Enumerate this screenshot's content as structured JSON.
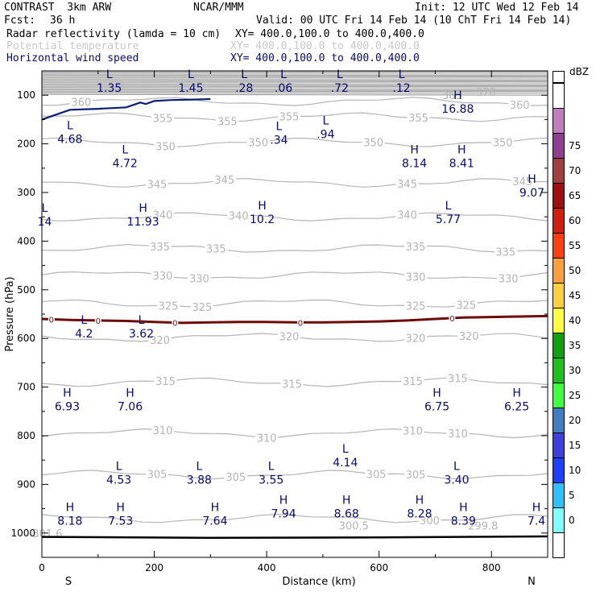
{
  "header": {
    "model": "CONTRAST  3km ARW",
    "org": "NCAR/MMM",
    "init": "Init: 12 UTC Wed 12 Feb 14",
    "fcst_label": "Fcst:",
    "fcst_value": "36 h",
    "valid": "Valid: 00 UTC Fri 14 Feb 14 (10 ChT Fri 14 Feb 14)",
    "fields": [
      {
        "name": "Radar reflectivity (lamda = 10 cm)",
        "xy": "XY= 400.0,100.0 to 400.0,400.0",
        "color": "#000000"
      },
      {
        "name": "Potential temperature",
        "xy": "XY= 400.0,100.0 to 400.0,400.0",
        "color": "#c8c8c8"
      },
      {
        "name": "Horizontal wind speed",
        "xy": "XY= 400.0,100.0 to 400.0,400.0",
        "color": "#0a0a6e"
      }
    ]
  },
  "chart_data": {
    "type": "line",
    "xlabel": "Distance (km)",
    "ylabel": "Pressure (hPa)",
    "xlim": [
      0,
      900
    ],
    "ylim": [
      1050,
      50
    ],
    "x_ticks": [
      0,
      200,
      400,
      600,
      800
    ],
    "y_ticks": [
      100,
      200,
      300,
      400,
      500,
      600,
      700,
      800,
      900,
      1000
    ],
    "x_end_labels": {
      "left": "S",
      "right": "N"
    },
    "theta_contours": [
      {
        "value": 360,
        "p": 113,
        "labels_x": [
          70,
          850
        ]
      },
      {
        "value": 355,
        "p": 145,
        "labels_x": [
          215,
          330,
          440,
          670
        ]
      },
      {
        "value": 350,
        "p": 197,
        "labels_x": [
          220,
          385,
          590,
          820
        ]
      },
      {
        "value": 345,
        "p": 280,
        "labels_x": [
          205,
          325,
          650,
          855
        ]
      },
      {
        "value": 340,
        "p": 350,
        "labels_x": [
          215,
          350,
          650
        ]
      },
      {
        "value": 335,
        "p": 415,
        "labels_x": [
          210,
          310,
          665,
          825
        ]
      },
      {
        "value": 330,
        "p": 470,
        "labels_x": [
          215,
          280,
          665,
          830
        ]
      },
      {
        "value": 325,
        "p": 528,
        "labels_x": [
          225,
          285,
          665,
          755
        ]
      },
      {
        "value": 320,
        "p": 598,
        "labels_x": [
          210,
          440,
          665,
          760
        ]
      },
      {
        "value": 315,
        "p": 690,
        "labels_x": [
          220,
          445,
          660,
          740
        ]
      },
      {
        "value": 310,
        "p": 795,
        "labels_x": [
          215,
          400,
          660,
          740
        ]
      },
      {
        "value": 305,
        "p": 880,
        "labels_x": [
          205,
          345,
          595,
          665
        ]
      },
      {
        "value": 300,
        "p": 970,
        "labels_x": [
          690
        ]
      }
    ],
    "theta_extra_labels": [
      {
        "text": "370",
        "x": 790,
        "p": 93
      },
      {
        "text": "365",
        "x": 730,
        "p": 100
      },
      {
        "text": "300.5",
        "x": 555,
        "p": 985
      },
      {
        "text": "299.8",
        "x": 785,
        "p": 985
      },
      {
        "text": "301.6",
        "x": 10,
        "p": 1000
      }
    ],
    "wind_extrema": [
      {
        "kind": "L",
        "value": "1.35",
        "x": 120,
        "p": 75
      },
      {
        "kind": "L",
        "value": "1.45",
        "x": 265,
        "p": 75
      },
      {
        "kind": "L",
        "value": ".28",
        "x": 360,
        "p": 75
      },
      {
        "kind": "L",
        "value": ".06",
        "x": 430,
        "p": 75
      },
      {
        "kind": "L",
        "value": ".72",
        "x": 530,
        "p": 75
      },
      {
        "kind": "L",
        "value": ".12",
        "x": 640,
        "p": 75
      },
      {
        "kind": "H",
        "value": "16.88",
        "x": 740,
        "p": 118
      },
      {
        "kind": "L",
        "value": "4.68",
        "x": 50,
        "p": 180
      },
      {
        "kind": "L",
        "value": ".34",
        "x": 422,
        "p": 182
      },
      {
        "kind": "L",
        "value": ".94",
        "x": 505,
        "p": 170
      },
      {
        "kind": "L",
        "value": "4.72",
        "x": 148,
        "p": 230
      },
      {
        "kind": "H",
        "value": "8.14",
        "x": 663,
        "p": 230
      },
      {
        "kind": "H",
        "value": "8.41",
        "x": 747,
        "p": 230
      },
      {
        "kind": "H",
        "value": "9.07",
        "x": 872,
        "p": 290
      },
      {
        "kind": "L",
        "value": "14",
        "x": 5,
        "p": 350
      },
      {
        "kind": "H",
        "value": "11.93",
        "x": 180,
        "p": 350
      },
      {
        "kind": "H",
        "value": "10.2",
        "x": 392,
        "p": 345
      },
      {
        "kind": "L",
        "value": "5.77",
        "x": 723,
        "p": 345
      },
      {
        "kind": "L",
        "value": "4.2",
        "x": 75,
        "p": 580
      },
      {
        "kind": "L",
        "value": "3.62",
        "x": 177,
        "p": 580
      },
      {
        "kind": "H",
        "value": "6.93",
        "x": 45,
        "p": 730
      },
      {
        "kind": "H",
        "value": "7.06",
        "x": 157,
        "p": 730
      },
      {
        "kind": "H",
        "value": "6.75",
        "x": 703,
        "p": 730
      },
      {
        "kind": "H",
        "value": "6.25",
        "x": 845,
        "p": 730
      },
      {
        "kind": "L",
        "value": "4.14",
        "x": 540,
        "p": 845
      },
      {
        "kind": "L",
        "value": "4.53",
        "x": 137,
        "p": 880
      },
      {
        "kind": "L",
        "value": "3.88",
        "x": 280,
        "p": 880
      },
      {
        "kind": "L",
        "value": "3.55",
        "x": 408,
        "p": 880
      },
      {
        "kind": "L",
        "value": "3.40",
        "x": 738,
        "p": 880
      },
      {
        "kind": "H",
        "value": "8.18",
        "x": 50,
        "p": 965
      },
      {
        "kind": "H",
        "value": "7.53",
        "x": 140,
        "p": 965
      },
      {
        "kind": "H",
        "value": "7.64",
        "x": 308,
        "p": 965
      },
      {
        "kind": "H",
        "value": "7.94",
        "x": 430,
        "p": 950
      },
      {
        "kind": "H",
        "value": "8.68",
        "x": 542,
        "p": 950
      },
      {
        "kind": "H",
        "value": "8.28",
        "x": 672,
        "p": 950
      },
      {
        "kind": "H",
        "value": "8.39",
        "x": 750,
        "p": 965
      },
      {
        "kind": "H",
        "value": "7.4",
        "x": 880,
        "p": 965
      }
    ],
    "jet_contour": {
      "color": "#0a1e78",
      "x": [
        0,
        50,
        100,
        150,
        175,
        185,
        200,
        230,
        270,
        300
      ],
      "p": [
        150,
        130,
        128,
        125,
        115,
        118,
        112,
        110,
        109,
        108
      ]
    },
    "reflectivity_line_zero": {
      "value": "0",
      "color": "#6e0a0a",
      "x": [
        0,
        50,
        100,
        150,
        200,
        250,
        300,
        350,
        400,
        450,
        500,
        550,
        600,
        650,
        700,
        750,
        800,
        850,
        900
      ],
      "p": [
        560,
        562,
        563,
        564,
        566,
        568,
        567,
        566,
        566,
        567,
        567,
        566,
        565,
        563,
        560,
        557,
        556,
        555,
        554
      ],
      "label_x": [
        17,
        100,
        237,
        460,
        730
      ]
    },
    "surface_line": {
      "x": [
        0,
        300,
        600,
        900
      ],
      "p": [
        1008,
        1010,
        1009,
        1007
      ]
    },
    "colorbar": {
      "unit": "dBZ",
      "levels": [
        "0",
        "5",
        "10",
        "15",
        "20",
        "25",
        "30",
        "35",
        "40",
        "45",
        "50",
        "55",
        "60",
        "65",
        "70",
        "75"
      ],
      "colors": [
        "#ffffff",
        "#7fffff",
        "#2fbfff",
        "#1f3fff",
        "#3f3fdf",
        "#3f7fbf",
        "#3fff3f",
        "#1fbf1f",
        "#0f9f0f",
        "#ffff3f",
        "#ffcf3f",
        "#ff9f3f",
        "#ff3f0f",
        "#cf1f0f",
        "#9f0f0f",
        "#9f3f3f",
        "#8f3f8f",
        "#bf7fbf",
        "#ffffff"
      ]
    }
  }
}
